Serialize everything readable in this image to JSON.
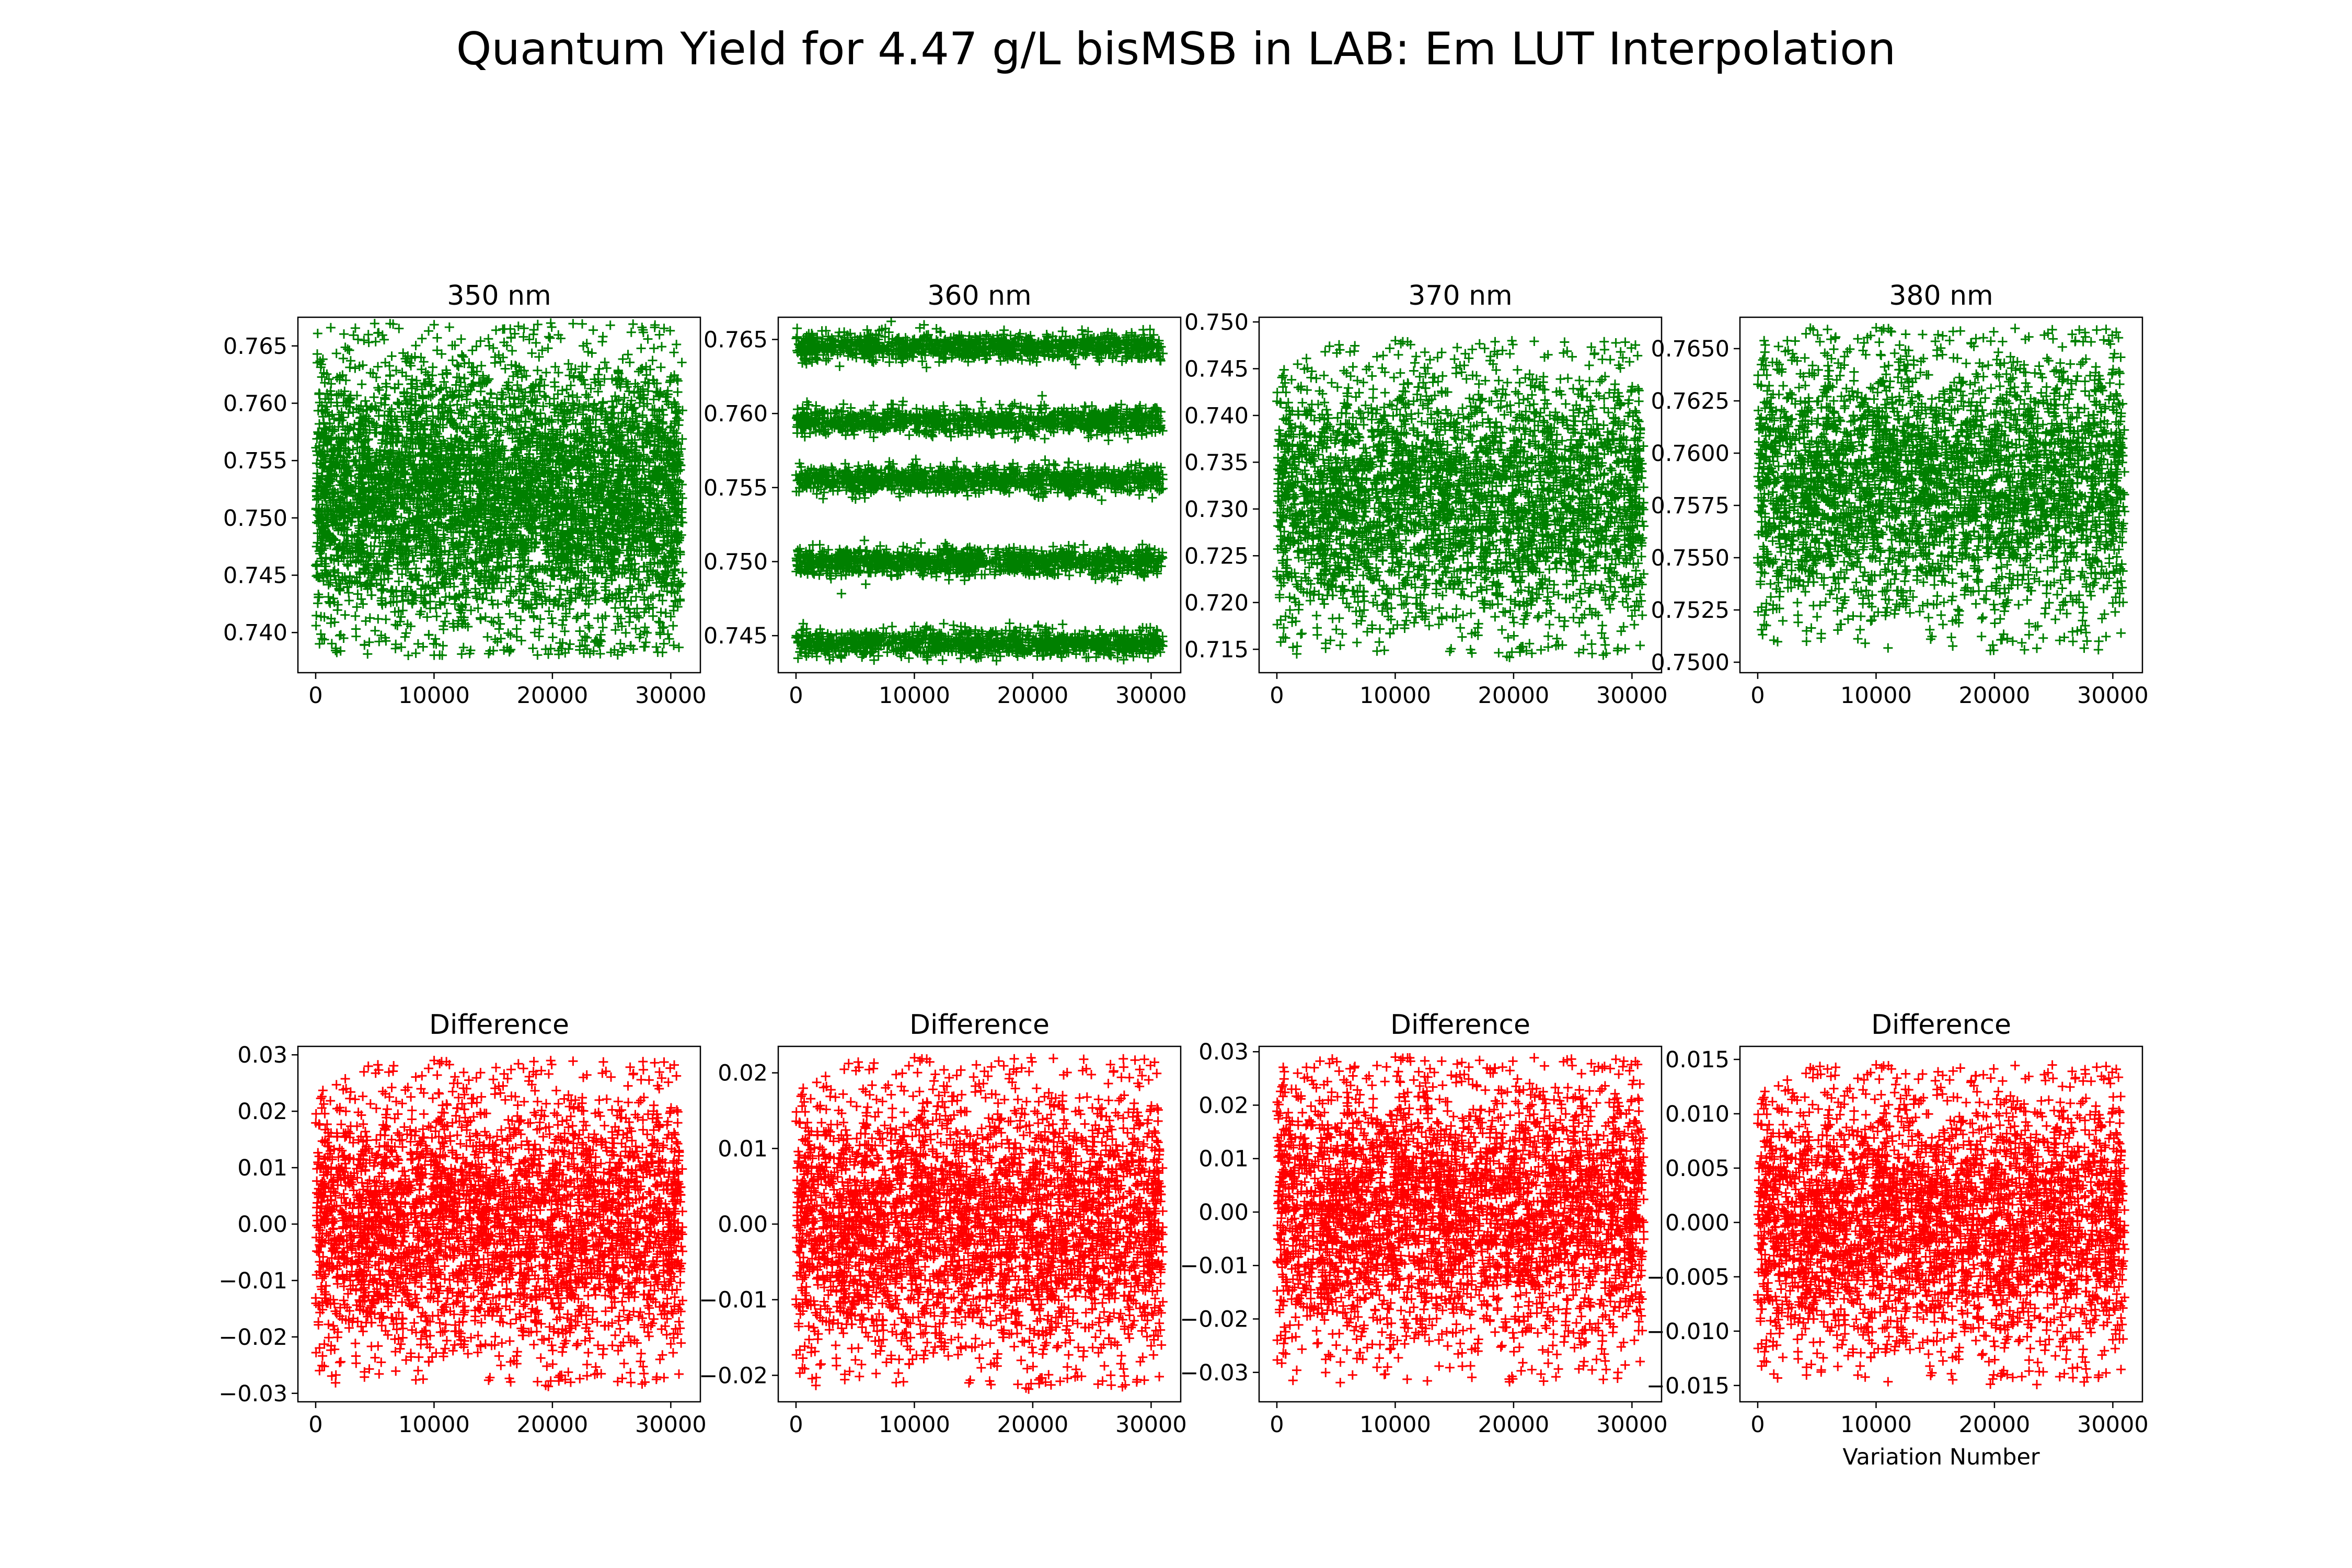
{
  "title": "Quantum Yield for 4.47 g/L bisMSB in LAB: Em LUT Interpolation",
  "colors": {
    "top": "#008000",
    "bottom": "#ff0000",
    "axes": "#000000",
    "background": "#ffffff"
  },
  "chart_data": [
    {
      "type": "scatter",
      "marker": "+",
      "color": "#008000",
      "title": "350 nm",
      "xlabel": "",
      "ylabel": "",
      "xlim": [
        -1500,
        32500
      ],
      "ylim": [
        0.7365,
        0.7675
      ],
      "xticks": [
        0,
        10000,
        20000,
        30000
      ],
      "xtick_labels": [
        "0",
        "10000",
        "20000",
        "30000"
      ],
      "yticks": [
        0.74,
        0.745,
        0.75,
        0.755,
        0.76,
        0.765
      ],
      "ytick_labels": [
        "0.740",
        "0.745",
        "0.750",
        "0.755",
        "0.760",
        "0.765"
      ],
      "series": [
        {
          "x_range": [
            0,
            31000
          ],
          "y_range": [
            0.738,
            0.767
          ],
          "n_points": 31000,
          "y_mean": 0.752
        }
      ]
    },
    {
      "type": "scatter",
      "marker": "+",
      "color": "#008000",
      "title": "360 nm",
      "xlabel": "",
      "ylabel": "",
      "xlim": [
        -1500,
        32500
      ],
      "ylim": [
        0.7425,
        0.7665
      ],
      "xticks": [
        0,
        10000,
        20000,
        30000
      ],
      "xtick_labels": [
        "0",
        "10000",
        "20000",
        "30000"
      ],
      "yticks": [
        0.745,
        0.75,
        0.755,
        0.76,
        0.765
      ],
      "ytick_labels": [
        "0.745",
        "0.750",
        "0.755",
        "0.760",
        "0.765"
      ],
      "series": [
        {
          "x_range": [
            0,
            31000
          ],
          "y_bands": [
            0.7445,
            0.75,
            0.7555,
            0.7595,
            0.7645
          ],
          "n_points": 31000
        }
      ]
    },
    {
      "type": "scatter",
      "marker": "+",
      "color": "#008000",
      "title": "370 nm",
      "xlabel": "",
      "ylabel": "",
      "xlim": [
        -1500,
        32500
      ],
      "ylim": [
        0.7125,
        0.7505
      ],
      "xticks": [
        0,
        10000,
        20000,
        30000
      ],
      "xtick_labels": [
        "0",
        "10000",
        "20000",
        "30000"
      ],
      "yticks": [
        0.715,
        0.72,
        0.725,
        0.73,
        0.735,
        0.74,
        0.745,
        0.75
      ],
      "ytick_labels": [
        "0.715",
        "0.720",
        "0.725",
        "0.730",
        "0.735",
        "0.740",
        "0.745",
        "0.750"
      ],
      "series": [
        {
          "x_range": [
            0,
            31000
          ],
          "y_range": [
            0.714,
            0.748
          ],
          "n_points": 31000,
          "y_mean": 0.731
        }
      ]
    },
    {
      "type": "scatter",
      "marker": "+",
      "color": "#008000",
      "title": "380 nm",
      "xlabel": "",
      "ylabel": "",
      "xlim": [
        -1500,
        32500
      ],
      "ylim": [
        0.7495,
        0.7665
      ],
      "xticks": [
        0,
        10000,
        20000,
        30000
      ],
      "xtick_labels": [
        "0",
        "10000",
        "20000",
        "30000"
      ],
      "yticks": [
        0.75,
        0.7525,
        0.755,
        0.7575,
        0.76,
        0.7625,
        0.765
      ],
      "ytick_labels": [
        "0.7500",
        "0.7525",
        "0.7550",
        "0.7575",
        "0.7600",
        "0.7625",
        "0.7650"
      ],
      "series": [
        {
          "x_range": [
            0,
            31000
          ],
          "y_range": [
            0.7505,
            0.766
          ],
          "n_points": 31000,
          "y_mean": 0.7585
        }
      ]
    },
    {
      "type": "scatter",
      "marker": "+",
      "color": "#ff0000",
      "title": "Difference",
      "xlabel": "",
      "ylabel": "",
      "xlim": [
        -1500,
        32500
      ],
      "ylim": [
        -0.0315,
        0.0315
      ],
      "xticks": [
        0,
        10000,
        20000,
        30000
      ],
      "xtick_labels": [
        "0",
        "10000",
        "20000",
        "30000"
      ],
      "yticks": [
        -0.03,
        -0.02,
        -0.01,
        0.0,
        0.01,
        0.02,
        0.03
      ],
      "ytick_labels": [
        "−0.03",
        "−0.02",
        "−0.01",
        "0.00",
        "0.01",
        "0.02",
        "0.03"
      ],
      "series": [
        {
          "x_range": [
            0,
            31000
          ],
          "y_range": [
            -0.029,
            0.029
          ],
          "n_points": 31000,
          "y_mean": 0.0
        }
      ]
    },
    {
      "type": "scatter",
      "marker": "+",
      "color": "#ff0000",
      "title": "Difference",
      "xlabel": "",
      "ylabel": "",
      "xlim": [
        -1500,
        32500
      ],
      "ylim": [
        -0.0235,
        0.0235
      ],
      "xticks": [
        0,
        10000,
        20000,
        30000
      ],
      "xtick_labels": [
        "0",
        "10000",
        "20000",
        "30000"
      ],
      "yticks": [
        -0.02,
        -0.01,
        0.0,
        0.01,
        0.02
      ],
      "ytick_labels": [
        "−0.02",
        "−0.01",
        "0.00",
        "0.01",
        "0.02"
      ],
      "series": [
        {
          "x_range": [
            0,
            31000
          ],
          "y_range": [
            -0.022,
            0.022
          ],
          "n_points": 31000,
          "y_mean": 0.0
        }
      ]
    },
    {
      "type": "scatter",
      "marker": "+",
      "color": "#ff0000",
      "title": "Difference",
      "xlabel": "",
      "ylabel": "",
      "xlim": [
        -1500,
        32500
      ],
      "ylim": [
        -0.0355,
        0.031
      ],
      "xticks": [
        0,
        10000,
        20000,
        30000
      ],
      "xtick_labels": [
        "0",
        "10000",
        "20000",
        "30000"
      ],
      "yticks": [
        -0.03,
        -0.02,
        -0.01,
        0.0,
        0.01,
        0.02,
        0.03
      ],
      "ytick_labels": [
        "−0.03",
        "−0.02",
        "−0.01",
        "0.00",
        "0.01",
        "0.02",
        "0.03"
      ],
      "series": [
        {
          "x_range": [
            0,
            31000
          ],
          "y_range": [
            -0.032,
            0.029
          ],
          "n_points": 31000,
          "y_mean": 0.0
        }
      ]
    },
    {
      "type": "scatter",
      "marker": "+",
      "color": "#ff0000",
      "title": "Difference",
      "xlabel": "Variation Number",
      "ylabel": "",
      "xlim": [
        -1500,
        32500
      ],
      "ylim": [
        -0.0165,
        0.0162
      ],
      "xticks": [
        0,
        10000,
        20000,
        30000
      ],
      "xtick_labels": [
        "0",
        "10000",
        "20000",
        "30000"
      ],
      "yticks": [
        -0.015,
        -0.01,
        -0.005,
        0.0,
        0.005,
        0.01,
        0.015
      ],
      "ytick_labels": [
        "−0.015",
        "−0.010",
        "−0.005",
        "0.000",
        "0.005",
        "0.010",
        "0.015"
      ],
      "series": [
        {
          "x_range": [
            0,
            31000
          ],
          "y_range": [
            -0.015,
            0.0145
          ],
          "n_points": 31000,
          "y_mean": 0.0
        }
      ]
    }
  ]
}
